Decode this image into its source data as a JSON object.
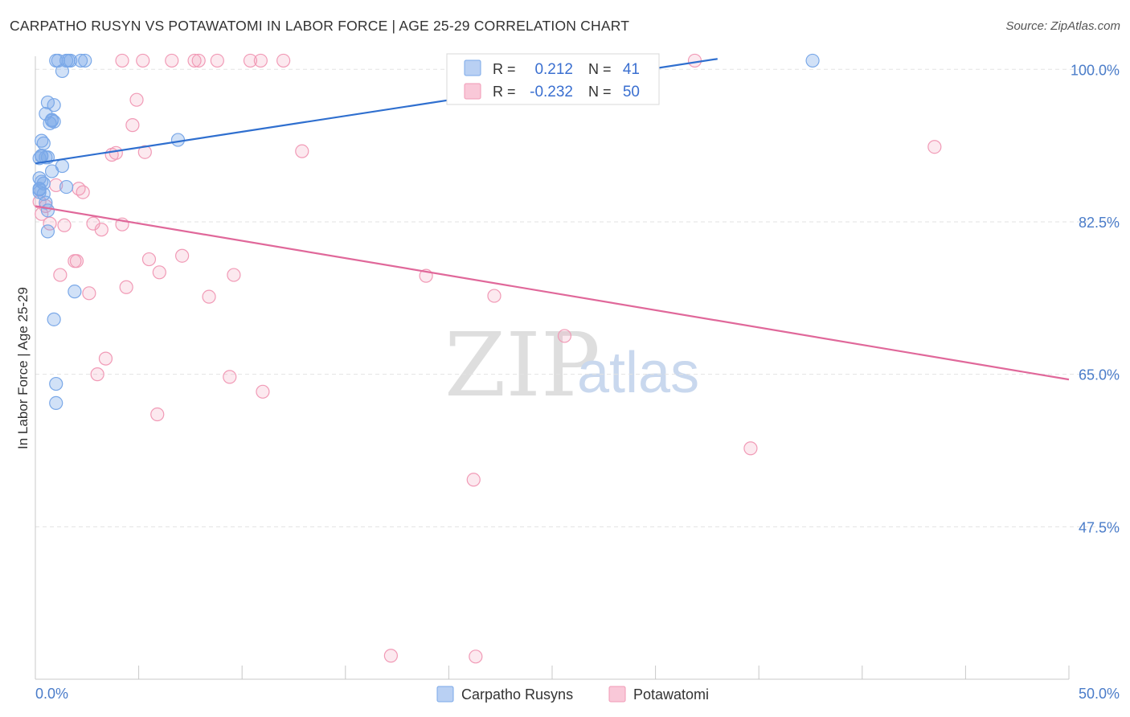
{
  "title": "CARPATHO RUSYN VS POTAWATOMI IN LABOR FORCE | AGE 25-29 CORRELATION CHART",
  "source": "Source: ZipAtlas.com",
  "watermark": {
    "zip": "ZIP",
    "atlas": "atlas"
  },
  "colors": {
    "blue": "#7aa8e8",
    "blue_line": "#2f6fcf",
    "pink": "#f19ab6",
    "pink_line": "#e0689a",
    "axis_text": "#4a7cc9",
    "grid": "#e3e3e3"
  },
  "chart_data": {
    "type": "scatter",
    "title": "CARPATHO RUSYN VS POTAWATOMI IN LABOR FORCE | AGE 25-29 CORRELATION CHART",
    "xlabel": "",
    "ylabel": "In Labor Force | Age 25-29",
    "xlim": [
      0,
      50
    ],
    "ylim": [
      30,
      101.5
    ],
    "x_tick_labels": [
      "0.0%",
      "50.0%"
    ],
    "y_ticks": [
      100.0,
      82.5,
      65.0,
      47.5
    ],
    "y_tick_labels": [
      "100.0%",
      "82.5%",
      "65.0%",
      "47.5%"
    ],
    "legend": [
      {
        "label": "R =",
        "r": "0.212",
        "n_label": "N =",
        "n": "41"
      },
      {
        "label": "R =",
        "r": "-0.232",
        "n_label": "N =",
        "n": "50"
      }
    ],
    "series": [
      {
        "name": "Carpatho Rusyns",
        "r": 0.212,
        "n": 41,
        "trend": {
          "x0": 0,
          "y0": 89.2,
          "x1": 33,
          "y1": 101.2
        },
        "points": [
          [
            1.0,
            101.0
          ],
          [
            1.1,
            101.0
          ],
          [
            1.5,
            101.0
          ],
          [
            1.6,
            101.0
          ],
          [
            1.7,
            101.0
          ],
          [
            2.2,
            101.0
          ],
          [
            2.4,
            101.0
          ],
          [
            37.6,
            101.0
          ],
          [
            1.3,
            99.8
          ],
          [
            0.6,
            96.2
          ],
          [
            0.9,
            95.9
          ],
          [
            0.5,
            94.9
          ],
          [
            0.8,
            94.2
          ],
          [
            0.9,
            94.0
          ],
          [
            0.7,
            93.8
          ],
          [
            6.9,
            91.9
          ],
          [
            0.3,
            91.8
          ],
          [
            0.4,
            91.5
          ],
          [
            0.3,
            90.0
          ],
          [
            0.2,
            89.8
          ],
          [
            0.6,
            89.9
          ],
          [
            1.3,
            88.9
          ],
          [
            0.8,
            88.3
          ],
          [
            0.2,
            87.5
          ],
          [
            0.3,
            87.1
          ],
          [
            0.4,
            86.9
          ],
          [
            1.5,
            86.5
          ],
          [
            0.2,
            86.3
          ],
          [
            0.2,
            85.9
          ],
          [
            0.4,
            85.7
          ],
          [
            0.5,
            84.7
          ],
          [
            0.6,
            83.8
          ],
          [
            0.6,
            81.4
          ],
          [
            1.9,
            74.5
          ],
          [
            0.9,
            71.3
          ],
          [
            1.0,
            63.9
          ],
          [
            1.0,
            61.7
          ],
          [
            0.3,
            90.1
          ],
          [
            0.2,
            86.2
          ],
          [
            0.5,
            89.9
          ],
          [
            0.8,
            94.1
          ]
        ]
      },
      {
        "name": "Potawatomi",
        "r": -0.232,
        "n": 50,
        "trend": {
          "x0": 0,
          "y0": 84.3,
          "x1": 50,
          "y1": 64.4
        },
        "points": [
          [
            4.2,
            101.0
          ],
          [
            5.2,
            101.0
          ],
          [
            6.6,
            101.0
          ],
          [
            7.7,
            101.0
          ],
          [
            7.9,
            101.0
          ],
          [
            8.8,
            101.0
          ],
          [
            10.4,
            101.0
          ],
          [
            10.9,
            101.0
          ],
          [
            12.0,
            101.0
          ],
          [
            31.9,
            101.0
          ],
          [
            4.9,
            96.5
          ],
          [
            4.7,
            93.6
          ],
          [
            5.3,
            90.5
          ],
          [
            3.7,
            90.2
          ],
          [
            3.9,
            90.4
          ],
          [
            12.9,
            90.6
          ],
          [
            43.5,
            91.1
          ],
          [
            1.0,
            86.7
          ],
          [
            2.1,
            86.3
          ],
          [
            2.3,
            85.9
          ],
          [
            0.2,
            84.8
          ],
          [
            0.5,
            84.3
          ],
          [
            0.3,
            83.4
          ],
          [
            0.7,
            82.3
          ],
          [
            1.4,
            82.1
          ],
          [
            2.8,
            82.3
          ],
          [
            3.2,
            81.6
          ],
          [
            4.2,
            82.2
          ],
          [
            1.9,
            78.0
          ],
          [
            2.0,
            78.0
          ],
          [
            5.5,
            78.2
          ],
          [
            7.1,
            78.6
          ],
          [
            1.2,
            76.4
          ],
          [
            6.0,
            76.7
          ],
          [
            9.6,
            76.4
          ],
          [
            18.9,
            76.3
          ],
          [
            4.4,
            75.0
          ],
          [
            2.6,
            74.3
          ],
          [
            8.4,
            73.9
          ],
          [
            22.2,
            74.0
          ],
          [
            25.6,
            69.4
          ],
          [
            3.4,
            66.8
          ],
          [
            3.0,
            65.0
          ],
          [
            9.4,
            64.7
          ],
          [
            11.0,
            63.0
          ],
          [
            5.9,
            60.4
          ],
          [
            34.6,
            56.5
          ],
          [
            21.2,
            52.9
          ],
          [
            17.2,
            32.7
          ],
          [
            21.3,
            32.6
          ]
        ]
      }
    ]
  },
  "bottom_legend": [
    {
      "label": "Carpatho Rusyns"
    },
    {
      "label": "Potawatomi"
    }
  ]
}
